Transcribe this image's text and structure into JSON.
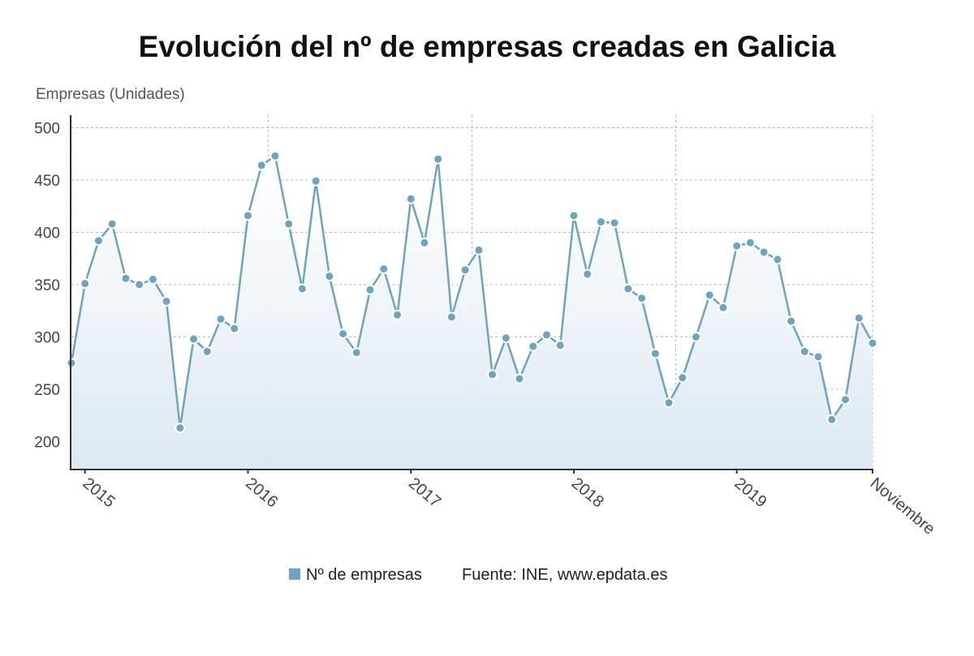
{
  "chart_data": {
    "type": "line",
    "title": "Evolución del nº de empresas creadas en Galicia",
    "ylabel": "Empresas (Unidades)",
    "xlabel": "",
    "ylim": [
      174,
      512
    ],
    "yticks": [
      200,
      250,
      300,
      350,
      400,
      450,
      500
    ],
    "xticks": [
      {
        "label": "2015",
        "index": 1
      },
      {
        "label": "2016",
        "index": 13
      },
      {
        "label": "2017",
        "index": 25
      },
      {
        "label": "2018",
        "index": 37
      },
      {
        "label": "2019",
        "index": 49
      },
      {
        "label": "Noviembre",
        "index": 59
      }
    ],
    "grid": true,
    "legend_position": "bottom",
    "series": [
      {
        "name": "Nº de empresas",
        "color": "#6fa3c0",
        "values": [
          275,
          351,
          392,
          408,
          356,
          350,
          355,
          334,
          213,
          298,
          286,
          317,
          308,
          416,
          464,
          473,
          408,
          346,
          449,
          358,
          303,
          285,
          345,
          365,
          321,
          432,
          390,
          470,
          319,
          364,
          383,
          264,
          299,
          260,
          291,
          302,
          292,
          416,
          360,
          410,
          409,
          346,
          337,
          284,
          237,
          261,
          300,
          340,
          328,
          387,
          390,
          381,
          374,
          315,
          286,
          281,
          221,
          240,
          318,
          294
        ]
      }
    ]
  },
  "legend": {
    "series_label": "Nº de empresas",
    "source": "Fuente: INE, www.epdata.es"
  }
}
